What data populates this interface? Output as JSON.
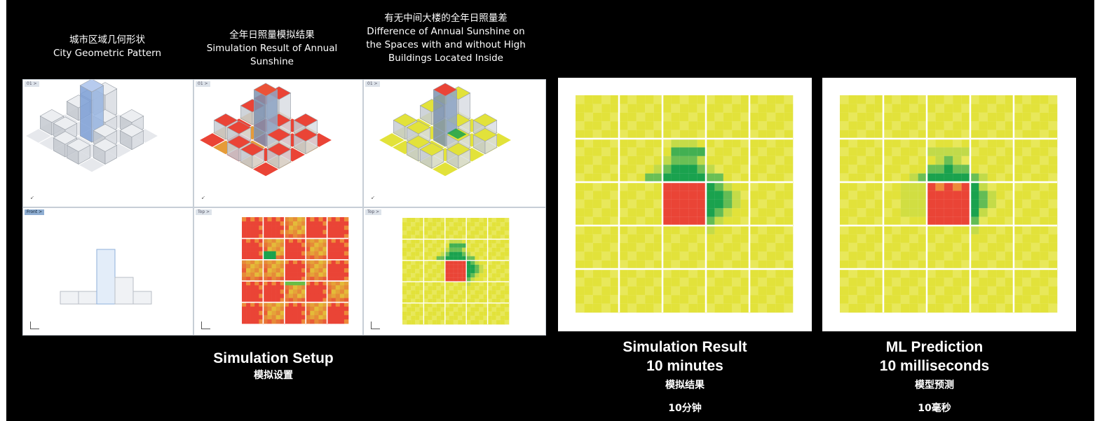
{
  "colors": {
    "background": "#000000",
    "yellow": "#e2e23a",
    "yellow_light": "#e8e85a",
    "red": "#ea4436",
    "orange": "#ee8a3a",
    "green": "#1aa24e",
    "light_green": "#9fd25a",
    "building_glass": "#b9bec6",
    "building_highlight": "#6f93d0",
    "grid_line": "#ffffff"
  },
  "headers": {
    "col1": {
      "zh": "城市区域几何形状",
      "en": "City Geometric Pattern"
    },
    "col2": {
      "zh": "全年日照量模拟结果",
      "en1": "Simulation Result of Annual",
      "en2": "Sunshine"
    },
    "col3": {
      "zh": "有无中间大楼的全年日照量差",
      "en1": "Difference of Annual Sunshine on",
      "en2": "the Spaces with and without High",
      "en3": "Buildings Located Inside"
    }
  },
  "viewports": {
    "v1": "01 >",
    "v2": "01 >",
    "v3": "01 >",
    "v4": "Front >",
    "v5": "Top >",
    "v6": "Top >"
  },
  "setup": {
    "title": "Simulation Setup",
    "subtitle": "模拟设置"
  },
  "simulation": {
    "title": "Simulation Result",
    "time": "10 minutes",
    "zh": "模拟结果",
    "zh_time": "10分钟"
  },
  "prediction": {
    "title": "ML Prediction",
    "time": "10 milliseconds",
    "zh": "模型预测",
    "zh_time": "10毫秒"
  }
}
